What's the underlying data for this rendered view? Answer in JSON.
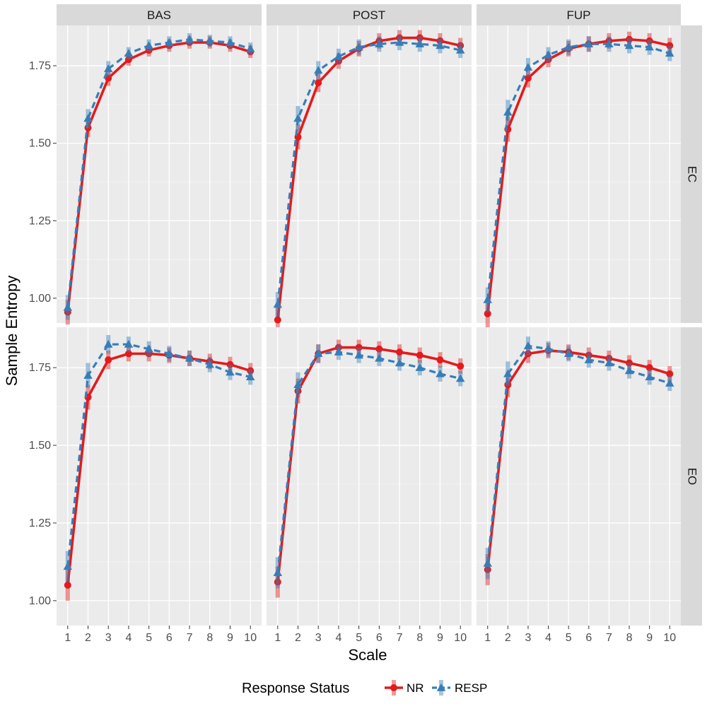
{
  "chart_data": {
    "type": "line",
    "facet_columns": [
      "BAS",
      "POST",
      "FUP"
    ],
    "facet_rows": [
      "EC",
      "EO"
    ],
    "x": [
      1,
      2,
      3,
      4,
      5,
      6,
      7,
      8,
      9,
      10
    ],
    "x_ticks": [
      "1",
      "2",
      "3",
      "4",
      "5",
      "6",
      "7",
      "8",
      "9",
      "10"
    ],
    "xlabel": "Scale",
    "ylabel": "Sample Entropy",
    "ylim": [
      0.92,
      1.88
    ],
    "y_ticks": [
      "1.00",
      "1.25",
      "1.50",
      "1.75"
    ],
    "y_tick_values": [
      1.0,
      1.25,
      1.5,
      1.75
    ],
    "grid": true,
    "legend": {
      "title": "Response Status",
      "position": "bottom",
      "entries": [
        "NR",
        "RESP"
      ]
    },
    "colors": {
      "NR": "#e41a1c",
      "RESP": "#377eb8"
    },
    "panels": [
      {
        "col": "BAS",
        "row": "EC",
        "series": [
          {
            "name": "NR",
            "values": [
              0.955,
              1.55,
              1.71,
              1.77,
              1.8,
              1.815,
              1.825,
              1.825,
              1.815,
              1.795
            ],
            "err": [
              0.04,
              0.03,
              0.025,
              0.02,
              0.02,
              0.02,
              0.02,
              0.02,
              0.02,
              0.02
            ]
          },
          {
            "name": "RESP",
            "values": [
              0.97,
              1.58,
              1.74,
              1.79,
              1.815,
              1.825,
              1.835,
              1.83,
              1.825,
              1.805
            ],
            "err": [
              0.04,
              0.03,
              0.025,
              0.02,
              0.02,
              0.02,
              0.02,
              0.02,
              0.02,
              0.02
            ]
          }
        ]
      },
      {
        "col": "POST",
        "row": "EC",
        "series": [
          {
            "name": "NR",
            "values": [
              0.93,
              1.52,
              1.695,
              1.765,
              1.805,
              1.83,
              1.84,
              1.84,
              1.83,
              1.815
            ],
            "err": [
              0.05,
              0.04,
              0.03,
              0.025,
              0.025,
              0.025,
              0.025,
              0.025,
              0.025,
              0.025
            ]
          },
          {
            "name": "RESP",
            "values": [
              0.98,
              1.58,
              1.735,
              1.78,
              1.81,
              1.82,
              1.825,
              1.82,
              1.815,
              1.8
            ],
            "err": [
              0.04,
              0.04,
              0.03,
              0.025,
              0.025,
              0.025,
              0.025,
              0.025,
              0.025,
              0.025
            ]
          }
        ]
      },
      {
        "col": "FUP",
        "row": "EC",
        "series": [
          {
            "name": "NR",
            "values": [
              0.95,
              1.545,
              1.71,
              1.77,
              1.805,
              1.82,
              1.83,
              1.835,
              1.83,
              1.815
            ],
            "err": [
              0.05,
              0.04,
              0.03,
              0.025,
              0.025,
              0.025,
              0.025,
              0.025,
              0.025,
              0.025
            ]
          },
          {
            "name": "RESP",
            "values": [
              0.995,
              1.6,
              1.745,
              1.785,
              1.81,
              1.82,
              1.82,
              1.815,
              1.81,
              1.79
            ],
            "err": [
              0.04,
              0.04,
              0.03,
              0.025,
              0.025,
              0.025,
              0.025,
              0.025,
              0.025,
              0.025
            ]
          }
        ]
      },
      {
        "col": "BAS",
        "row": "EO",
        "series": [
          {
            "name": "NR",
            "values": [
              1.05,
              1.655,
              1.775,
              1.795,
              1.795,
              1.79,
              1.78,
              1.77,
              1.76,
              1.74
            ],
            "err": [
              0.05,
              0.04,
              0.03,
              0.025,
              0.025,
              0.025,
              0.025,
              0.025,
              0.025,
              0.025
            ]
          },
          {
            "name": "RESP",
            "values": [
              1.11,
              1.725,
              1.825,
              1.825,
              1.81,
              1.795,
              1.78,
              1.76,
              1.735,
              1.72
            ],
            "err": [
              0.05,
              0.04,
              0.03,
              0.025,
              0.025,
              0.025,
              0.025,
              0.025,
              0.025,
              0.025
            ]
          }
        ]
      },
      {
        "col": "POST",
        "row": "EO",
        "series": [
          {
            "name": "NR",
            "values": [
              1.06,
              1.675,
              1.795,
              1.815,
              1.815,
              1.81,
              1.8,
              1.79,
              1.775,
              1.755
            ],
            "err": [
              0.05,
              0.04,
              0.03,
              0.025,
              0.025,
              0.025,
              0.025,
              0.025,
              0.025,
              0.025
            ]
          },
          {
            "name": "RESP",
            "values": [
              1.09,
              1.695,
              1.795,
              1.8,
              1.79,
              1.78,
              1.765,
              1.75,
              1.73,
              1.715
            ],
            "err": [
              0.05,
              0.04,
              0.03,
              0.025,
              0.025,
              0.025,
              0.025,
              0.025,
              0.025,
              0.025
            ]
          }
        ]
      },
      {
        "col": "FUP",
        "row": "EO",
        "series": [
          {
            "name": "NR",
            "values": [
              1.1,
              1.695,
              1.795,
              1.805,
              1.8,
              1.79,
              1.78,
              1.765,
              1.75,
              1.73
            ],
            "err": [
              0.05,
              0.04,
              0.03,
              0.025,
              0.025,
              0.025,
              0.025,
              0.025,
              0.025,
              0.025
            ]
          },
          {
            "name": "RESP",
            "values": [
              1.12,
              1.73,
              1.82,
              1.81,
              1.795,
              1.775,
              1.765,
              1.74,
              1.72,
              1.7
            ],
            "err": [
              0.05,
              0.04,
              0.03,
              0.025,
              0.025,
              0.025,
              0.025,
              0.025,
              0.025,
              0.025
            ]
          }
        ]
      }
    ]
  }
}
